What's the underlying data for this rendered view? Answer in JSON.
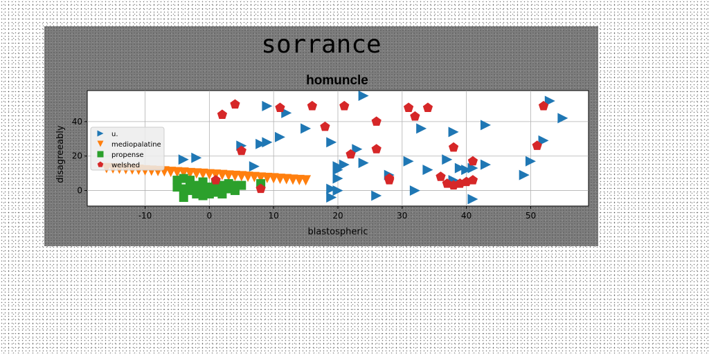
{
  "figure": {
    "suptitle": "sorrance"
  },
  "chart_data": {
    "type": "scatter",
    "title": "homuncle",
    "xlabel": "blastospheric",
    "ylabel": "disagreeably",
    "xlim": [
      -19,
      59
    ],
    "ylim": [
      -9,
      58
    ],
    "xticks": [
      -10,
      0,
      10,
      20,
      30,
      40,
      50
    ],
    "yticks": [
      0,
      20,
      40
    ],
    "grid": true,
    "legend_position": "center-left",
    "series": [
      {
        "name": "u.",
        "marker": "triangle-right",
        "color": "#1f77b4",
        "points": [
          [
            -4,
            18
          ],
          [
            -2,
            19
          ],
          [
            5,
            26
          ],
          [
            7,
            14
          ],
          [
            8,
            27
          ],
          [
            9,
            28
          ],
          [
            9,
            49
          ],
          [
            11,
            31
          ],
          [
            12,
            45
          ],
          [
            15,
            36
          ],
          [
            19,
            28
          ],
          [
            19,
            1
          ],
          [
            19,
            -4
          ],
          [
            20,
            12
          ],
          [
            20,
            14
          ],
          [
            20,
            7
          ],
          [
            20,
            0
          ],
          [
            21,
            15
          ],
          [
            23,
            24
          ],
          [
            24,
            55
          ],
          [
            24,
            16
          ],
          [
            26,
            -3
          ],
          [
            28,
            9
          ],
          [
            31,
            17
          ],
          [
            32,
            0
          ],
          [
            33,
            36
          ],
          [
            34,
            12
          ],
          [
            37,
            18
          ],
          [
            38,
            6
          ],
          [
            38,
            34
          ],
          [
            39,
            13
          ],
          [
            40,
            12
          ],
          [
            41,
            -5
          ],
          [
            41,
            13
          ],
          [
            43,
            15
          ],
          [
            43,
            38
          ],
          [
            49,
            9
          ],
          [
            50,
            17
          ],
          [
            52,
            29
          ],
          [
            53,
            52
          ],
          [
            55,
            42
          ]
        ]
      },
      {
        "name": "mediopalatine",
        "marker": "triangle-down",
        "color": "#ff7f0e",
        "points": [
          [
            -16,
            13
          ],
          [
            -15,
            12.8
          ],
          [
            -14,
            12.6
          ],
          [
            -13,
            12.4
          ],
          [
            -12,
            12.2
          ],
          [
            -11,
            12
          ],
          [
            -10,
            11.7
          ],
          [
            -9,
            11.5
          ],
          [
            -8,
            11.3
          ],
          [
            -7,
            11.1
          ],
          [
            -6,
            10.8
          ],
          [
            -5,
            10.6
          ],
          [
            -4,
            10.4
          ],
          [
            -3,
            10.1
          ],
          [
            -2,
            9.9
          ],
          [
            -1,
            9.7
          ],
          [
            0,
            9.4
          ],
          [
            1,
            9.2
          ],
          [
            2,
            9
          ],
          [
            3,
            8.7
          ],
          [
            4,
            8.5
          ],
          [
            5,
            8.3
          ],
          [
            6,
            8
          ],
          [
            7,
            7.8
          ],
          [
            8,
            7.5
          ],
          [
            9,
            7.3
          ],
          [
            10,
            7.1
          ],
          [
            11,
            6.8
          ],
          [
            12,
            6.6
          ],
          [
            13,
            6.3
          ],
          [
            14,
            6.1
          ],
          [
            15,
            5.9
          ]
        ]
      },
      {
        "name": "propense",
        "marker": "square",
        "color": "#2ca02c",
        "points": [
          [
            -5,
            6
          ],
          [
            -5,
            2
          ],
          [
            -4,
            7
          ],
          [
            -4,
            1
          ],
          [
            -4,
            -4
          ],
          [
            -3,
            5
          ],
          [
            -3,
            0
          ],
          [
            -3,
            6
          ],
          [
            -2,
            3
          ],
          [
            -2,
            -2
          ],
          [
            -1,
            5
          ],
          [
            -1,
            1
          ],
          [
            -1,
            -3
          ],
          [
            0,
            2
          ],
          [
            0,
            -2
          ],
          [
            1,
            4
          ],
          [
            1,
            -1
          ],
          [
            2,
            3
          ],
          [
            2,
            -2
          ],
          [
            3,
            1
          ],
          [
            3,
            4
          ],
          [
            4,
            0
          ],
          [
            4,
            3
          ],
          [
            5,
            3
          ],
          [
            8,
            4
          ]
        ]
      },
      {
        "name": "welshed",
        "marker": "pentagon",
        "color": "#d62728",
        "points": [
          [
            1,
            6
          ],
          [
            2,
            44
          ],
          [
            4,
            50
          ],
          [
            5,
            23
          ],
          [
            8,
            1
          ],
          [
            11,
            48
          ],
          [
            16,
            49
          ],
          [
            18,
            37
          ],
          [
            21,
            49
          ],
          [
            22,
            21
          ],
          [
            26,
            24
          ],
          [
            26,
            40
          ],
          [
            28,
            6
          ],
          [
            28,
            7
          ],
          [
            31,
            48
          ],
          [
            32,
            43
          ],
          [
            34,
            48
          ],
          [
            36,
            8
          ],
          [
            37,
            4
          ],
          [
            38,
            25
          ],
          [
            38,
            3
          ],
          [
            39,
            4
          ],
          [
            40,
            5
          ],
          [
            41,
            6
          ],
          [
            41,
            17
          ],
          [
            51,
            26
          ],
          [
            52,
            49
          ]
        ]
      }
    ]
  }
}
